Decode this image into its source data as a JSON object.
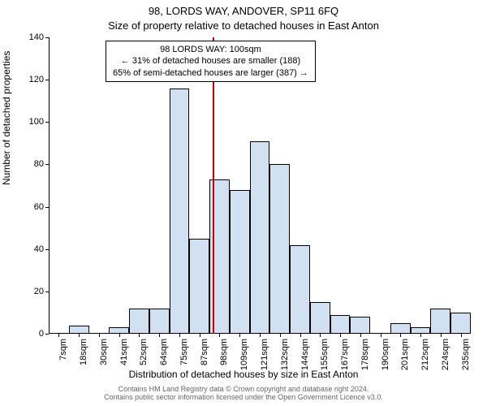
{
  "titles": {
    "main": "98, LORDS WAY, ANDOVER, SP11 6FQ",
    "sub": "Size of property relative to detached houses in East Anton"
  },
  "y_axis": {
    "label": "Number of detached properties",
    "min": 0,
    "max": 140,
    "step": 20,
    "ticks": [
      0,
      20,
      40,
      60,
      80,
      100,
      120,
      140
    ]
  },
  "x_axis": {
    "label": "Distribution of detached houses by size in East Anton",
    "tick_labels": [
      "7sqm",
      "18sqm",
      "30sqm",
      "41sqm",
      "52sqm",
      "64sqm",
      "75sqm",
      "87sqm",
      "98sqm",
      "109sqm",
      "121sqm",
      "132sqm",
      "144sqm",
      "155sqm",
      "167sqm",
      "178sqm",
      "190sqm",
      "201sqm",
      "212sqm",
      "224sqm",
      "235sqm"
    ]
  },
  "chart": {
    "type": "histogram",
    "values": [
      0,
      4,
      0,
      3,
      12,
      12,
      116,
      45,
      73,
      68,
      91,
      80,
      42,
      15,
      9,
      8,
      0,
      5,
      3,
      12,
      10
    ],
    "bar_fill": "#adc8e6",
    "bar_fill_opacity": 0.55,
    "bar_border": "#000000",
    "background": "#ffffff"
  },
  "marker": {
    "x_index": 8,
    "relative_offset": 0.15,
    "color": "#cc0000"
  },
  "annotation": {
    "line1": "98 LORDS WAY: 100sqm",
    "line2": "← 31% of detached houses are smaller (188)",
    "line3": "65% of semi-detached houses are larger (387) →"
  },
  "footer": {
    "line1": "Contains HM Land Registry data © Crown copyright and database right 2024.",
    "line2": "Contains public sector information licensed under the Open Government Licence v3.0."
  },
  "style": {
    "title_fontsize": 13,
    "axis_label_fontsize": 12,
    "tick_fontsize": 11,
    "annotation_fontsize": 11,
    "footer_fontsize": 9,
    "footer_color": "#666666"
  }
}
